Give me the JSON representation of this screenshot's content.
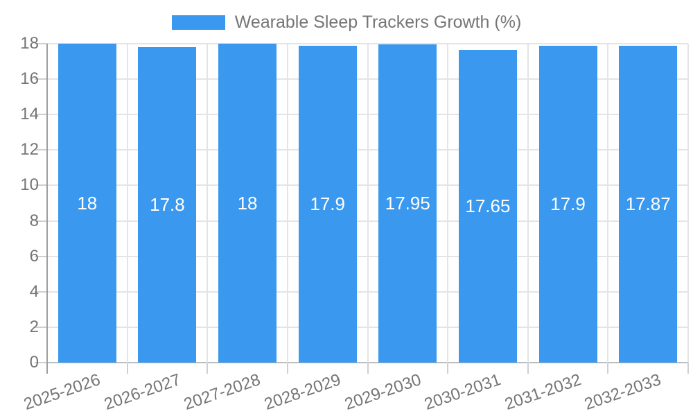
{
  "chart_data": {
    "type": "bar",
    "title": "Wearable Sleep Trackers Growth (%)",
    "categories": [
      "2025-2026",
      "2026-2027",
      "2027-2028",
      "2028-2029",
      "2029-2030",
      "2030-2031",
      "2031-2032",
      "2032-2033"
    ],
    "values": [
      18,
      17.8,
      18,
      17.9,
      17.95,
      17.65,
      17.9,
      17.87
    ],
    "bar_labels": [
      "18",
      "17.8",
      "18",
      "17.9",
      "17.95",
      "17.65",
      "17.9",
      "17.87"
    ],
    "xlabel": "",
    "ylabel": "",
    "ylim": [
      0,
      18
    ],
    "yticks": [
      0,
      2,
      4,
      6,
      8,
      10,
      12,
      14,
      16,
      18
    ],
    "grid": true,
    "legend_position": "top",
    "colors": {
      "bar": "#3A99EE",
      "text": "#757575",
      "grid": "#E4E4E4",
      "baseline": "#BDBDBD",
      "axis": "#9E9E9E",
      "tick": "#CFCFCF",
      "value_label": "#FFFFFF",
      "background": "#FFFFFF"
    }
  }
}
